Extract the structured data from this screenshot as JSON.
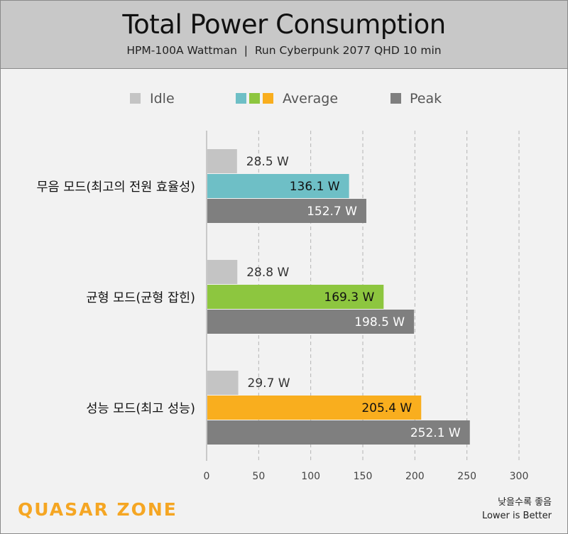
{
  "header": {
    "title": "Total Power Consumption",
    "subtitle": "HPM-100A Wattman  |  Run Cyberpunk 2077 QHD 10 min"
  },
  "legend": {
    "idle": "Idle",
    "average": "Average",
    "peak": "Peak"
  },
  "colors": {
    "idle": "#c4c4c4",
    "average": [
      "#6ebfc6",
      "#8dc63f",
      "#f9ae1e"
    ],
    "peak": "#7f7f7f",
    "grid": "#b4b4b4"
  },
  "footer": {
    "note_ko": "낮을수록 좋음",
    "note_en": "Lower is Better",
    "logo": "QUASAR ZONE"
  },
  "chart_data": {
    "type": "bar",
    "orientation": "horizontal",
    "title": "Total Power Consumption",
    "subtitle": "HPM-100A Wattman  |  Run Cyberpunk 2077 QHD 10 min",
    "categories": [
      "무음 모드(최고의 전원 효율성)",
      "균형 모드(균형 잡힌)",
      "성능 모드(최고 성능)"
    ],
    "series": [
      {
        "name": "Idle",
        "values": [
          28.5,
          28.8,
          29.7
        ],
        "labels": [
          "28.5 W",
          "28.8 W",
          "29.7 W"
        ]
      },
      {
        "name": "Average",
        "values": [
          136.1,
          169.3,
          205.4
        ],
        "labels": [
          "136.1 W",
          "169.3 W",
          "205.4 W"
        ]
      },
      {
        "name": "Peak",
        "values": [
          152.7,
          198.5,
          252.1
        ],
        "labels": [
          "152.7 W",
          "198.5 W",
          "252.1 W"
        ]
      }
    ],
    "xlim": [
      0,
      300
    ],
    "xticks": [
      "0",
      "50",
      "100",
      "150",
      "200",
      "250",
      "300"
    ],
    "grid": true,
    "legend_position": "top"
  }
}
